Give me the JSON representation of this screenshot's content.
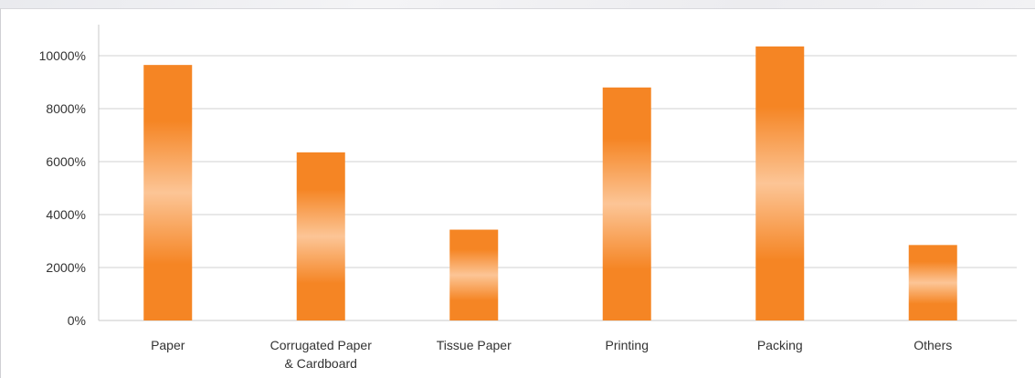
{
  "chart_data": {
    "type": "bar",
    "title": "",
    "xlabel": "",
    "ylabel": "",
    "categories": [
      "Paper",
      "Corrugated Paper\n& Cardboard",
      "Tissue Paper",
      "Printing",
      "Packing",
      "Others"
    ],
    "values": [
      9650,
      6350,
      3430,
      8800,
      10350,
      2850
    ],
    "y_ticks": [
      "0%",
      "2000%",
      "4000%",
      "6000%",
      "8000%",
      "10000%"
    ],
    "y_tick_values": [
      0,
      2000,
      4000,
      6000,
      8000,
      10000
    ],
    "ylim": [
      0,
      10000
    ],
    "grid": true,
    "bar_color": "#f58524",
    "bar_highlight_color": "#fcc596"
  }
}
